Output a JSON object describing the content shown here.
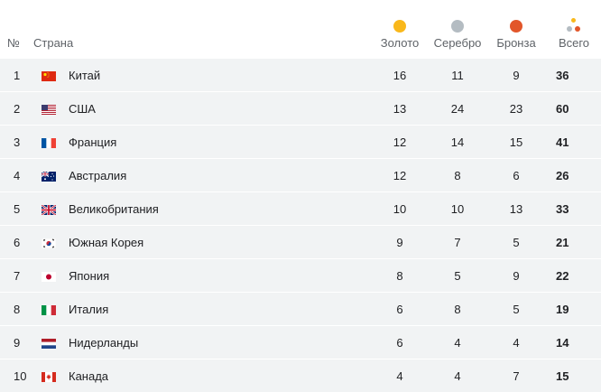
{
  "header": {
    "num": "№",
    "country": "Страна",
    "gold": "Золото",
    "silver": "Серебро",
    "bronze": "Бронза",
    "total": "Всего"
  },
  "colors": {
    "gold": "#f9b81b",
    "silver": "#b4bcc2",
    "bronze": "#e2562a",
    "row_bg": "#f1f3f4"
  },
  "rows": [
    {
      "rank": "1",
      "flag": "china-flag-icon",
      "country": "Китай",
      "gold": "16",
      "silver": "11",
      "bronze": "9",
      "total": "36"
    },
    {
      "rank": "2",
      "flag": "usa-flag-icon",
      "country": "США",
      "gold": "13",
      "silver": "24",
      "bronze": "23",
      "total": "60"
    },
    {
      "rank": "3",
      "flag": "france-flag-icon",
      "country": "Франция",
      "gold": "12",
      "silver": "14",
      "bronze": "15",
      "total": "41"
    },
    {
      "rank": "4",
      "flag": "australia-flag-icon",
      "country": "Австралия",
      "gold": "12",
      "silver": "8",
      "bronze": "6",
      "total": "26"
    },
    {
      "rank": "5",
      "flag": "uk-flag-icon",
      "country": "Великобритания",
      "gold": "10",
      "silver": "10",
      "bronze": "13",
      "total": "33"
    },
    {
      "rank": "6",
      "flag": "south-korea-flag-icon",
      "country": "Южная Корея",
      "gold": "9",
      "silver": "7",
      "bronze": "5",
      "total": "21"
    },
    {
      "rank": "7",
      "flag": "japan-flag-icon",
      "country": "Япония",
      "gold": "8",
      "silver": "5",
      "bronze": "9",
      "total": "22"
    },
    {
      "rank": "8",
      "flag": "italy-flag-icon",
      "country": "Италия",
      "gold": "6",
      "silver": "8",
      "bronze": "5",
      "total": "19"
    },
    {
      "rank": "9",
      "flag": "netherlands-flag-icon",
      "country": "Нидерланды",
      "gold": "6",
      "silver": "4",
      "bronze": "4",
      "total": "14"
    },
    {
      "rank": "10",
      "flag": "canada-flag-icon",
      "country": "Канада",
      "gold": "4",
      "silver": "4",
      "bronze": "7",
      "total": "15"
    }
  ]
}
